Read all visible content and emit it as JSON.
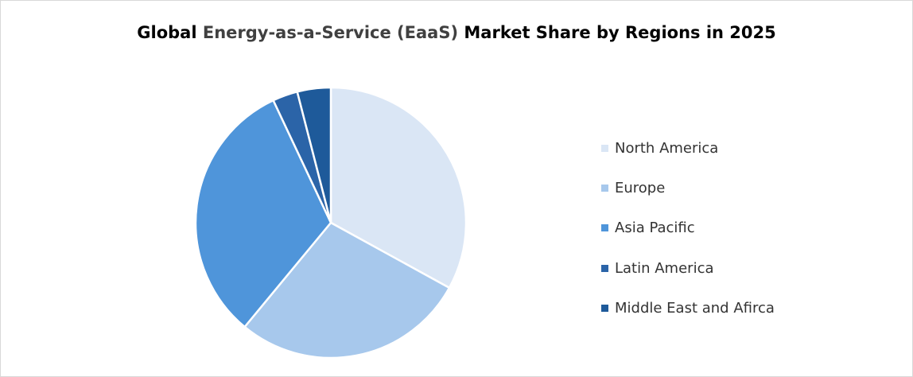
{
  "chart_data": {
    "type": "pie",
    "title": {
      "part1": "Global ",
      "part2": "Energy-as-a-Service (EaaS)",
      "part3": " Market Share by Regions in 2025"
    },
    "legend_position": "right",
    "slices": [
      {
        "label": "North America",
        "value": 33,
        "color": "#DAE6F5"
      },
      {
        "label": "Europe",
        "value": 28,
        "color": "#A7C8EC"
      },
      {
        "label": "Asia Pacific",
        "value": 32,
        "color": "#4F95DA"
      },
      {
        "label": "Latin America",
        "value": 3,
        "color": "#2B64A8"
      },
      {
        "label": "Middle East and Afirca",
        "value": 4,
        "color": "#1E5A9A"
      }
    ]
  }
}
